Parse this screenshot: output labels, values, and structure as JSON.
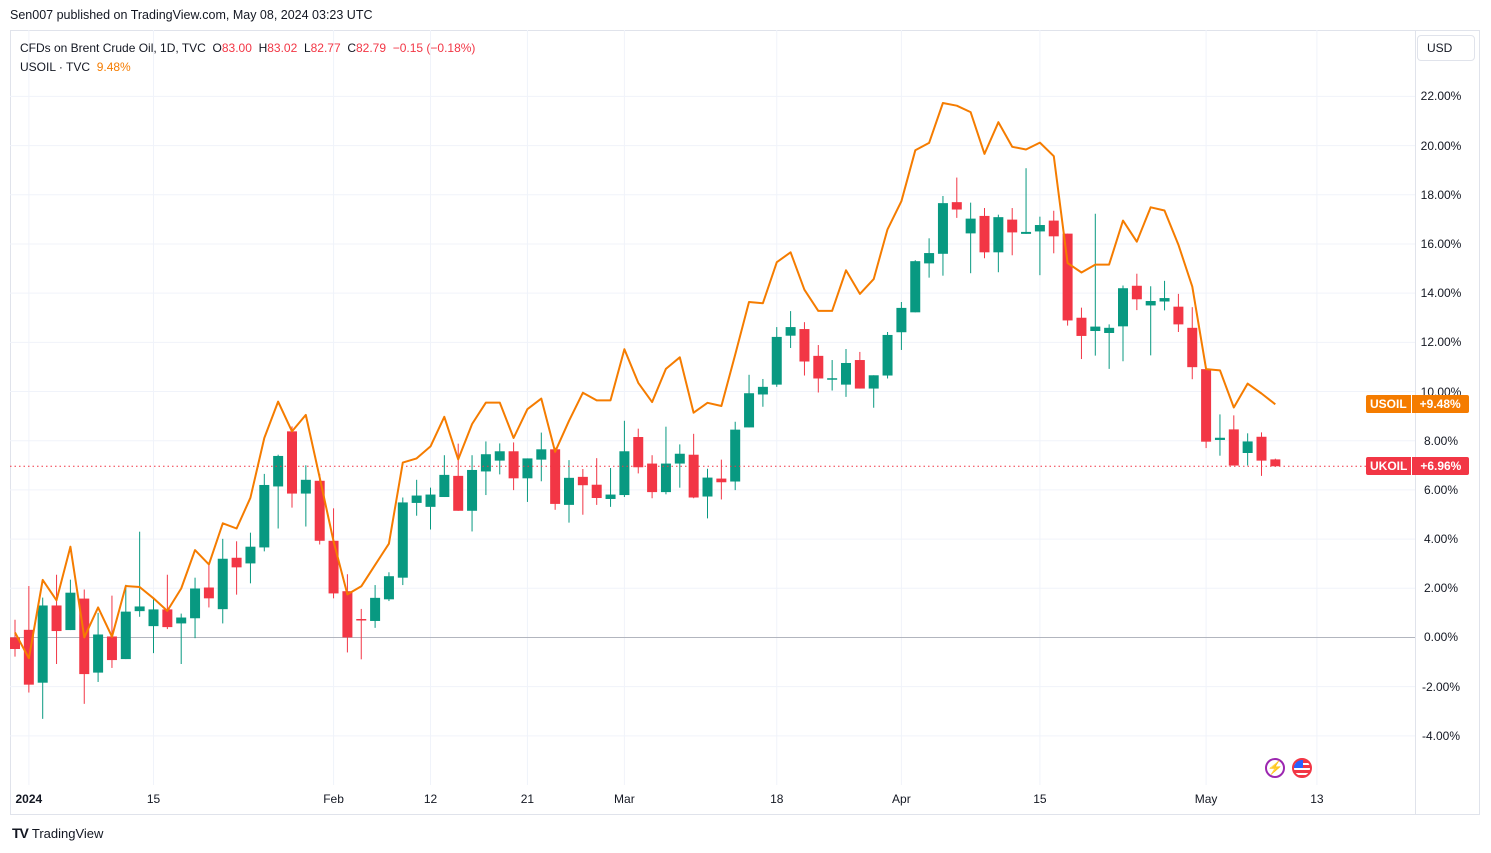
{
  "header": {
    "published": "Sen007 published on TradingView.com, May 08, 2024 03:23 UTC"
  },
  "legend": {
    "symbol_title": "CFDs on Brent Crude Oil, 1D, TVC",
    "o_label": "O",
    "o": "83.00",
    "h_label": "H",
    "h": "83.02",
    "l_label": "L",
    "l": "82.77",
    "c_label": "C",
    "c": "82.79",
    "change": "−0.15 (−0.18%)",
    "compare_symbol": "USOIL · TVC",
    "compare_value": "9.48%"
  },
  "currency_button": "USD",
  "footer": {
    "logo_mark": "TV",
    "logo_text": "TradingView"
  },
  "events": {
    "lightning_icon": "lightning-icon",
    "flag_icon": "us-flag-icon"
  },
  "colors": {
    "up": "#089981",
    "down": "#f23645",
    "compare_line": "#f57c00",
    "zero_line": "#b2b5be",
    "grid": "#f0f3fa"
  },
  "chart_data": {
    "type": "candlestick",
    "title": "CFDs on Brent Crude Oil, 1D, TVC",
    "ylabel": "% change",
    "ylim": [
      -6.0,
      24.7
    ],
    "grid": true,
    "yticks": [
      {
        "value": 22,
        "label": "22.00%"
      },
      {
        "value": 20,
        "label": "20.00%"
      },
      {
        "value": 18,
        "label": "18.00%"
      },
      {
        "value": 16,
        "label": "16.00%"
      },
      {
        "value": 14,
        "label": "14.00%"
      },
      {
        "value": 12,
        "label": "12.00%"
      },
      {
        "value": 10,
        "label": "10.00%"
      },
      {
        "value": 8,
        "label": "8.00%"
      },
      {
        "value": 6,
        "label": "6.00%"
      },
      {
        "value": 4,
        "label": "4.00%"
      },
      {
        "value": 2,
        "label": "2.00%"
      },
      {
        "value": 0,
        "label": "0.00%"
      },
      {
        "value": -2,
        "label": "-2.00%"
      },
      {
        "value": -4,
        "label": "-4.00%"
      }
    ],
    "xticks": [
      {
        "index": 1,
        "label": "2024",
        "bold": true
      },
      {
        "index": 10,
        "label": "15"
      },
      {
        "index": 23,
        "label": "Feb"
      },
      {
        "index": 30,
        "label": "12"
      },
      {
        "index": 37,
        "label": "21"
      },
      {
        "index": 44,
        "label": "Mar"
      },
      {
        "index": 55,
        "label": "18"
      },
      {
        "index": 64,
        "label": "Apr"
      },
      {
        "index": 74,
        "label": "15"
      },
      {
        "index": 86,
        "label": "May"
      },
      {
        "index": 94,
        "label": "13"
      }
    ],
    "series": [
      {
        "name": "UKOIL",
        "kind": "candles",
        "ohlc_percent": [
          [
            0,
            0.72,
            -0.78,
            -0.47
          ],
          [
            0.31,
            2.09,
            -2.24,
            -1.92
          ],
          [
            -1.84,
            1.62,
            -3.31,
            1.3
          ],
          [
            1.3,
            2.55,
            -1.08,
            0.26
          ],
          [
            0.3,
            2.35,
            0.3,
            1.82
          ],
          [
            1.58,
            1.95,
            -2.7,
            -1.49
          ],
          [
            -1.43,
            1.0,
            -1.81,
            0.12
          ],
          [
            0.04,
            1.7,
            -1.24,
            -0.92
          ],
          [
            -0.88,
            2.14,
            -0.88,
            1.05
          ],
          [
            1.07,
            4.3,
            0.84,
            1.26
          ],
          [
            0.46,
            1.57,
            -0.64,
            1.14
          ],
          [
            1.14,
            2.55,
            0.34,
            0.42
          ],
          [
            0.57,
            0.97,
            -1.08,
            0.81
          ],
          [
            0.78,
            2.43,
            -0.03,
            1.99
          ],
          [
            2.03,
            3.03,
            1.22,
            1.59
          ],
          [
            1.15,
            4.01,
            0.57,
            3.2
          ],
          [
            3.24,
            3.91,
            1.74,
            2.85
          ],
          [
            3.01,
            4.26,
            2.2,
            3.69
          ],
          [
            3.66,
            6.65,
            3.5,
            6.2
          ],
          [
            6.14,
            7.43,
            4.43,
            7.38
          ],
          [
            8.38,
            8.58,
            5.28,
            5.85
          ],
          [
            5.85,
            7.0,
            4.51,
            6.41
          ],
          [
            6.37,
            6.65,
            3.78,
            3.93
          ],
          [
            3.93,
            5.25,
            1.59,
            1.79
          ],
          [
            1.88,
            2.57,
            -0.61,
            0
          ],
          [
            0.75,
            1.16,
            -0.89,
            0.74
          ],
          [
            0.67,
            2.13,
            0.39,
            1.61
          ],
          [
            1.55,
            2.65,
            1.48,
            2.49
          ],
          [
            2.43,
            5.69,
            2.13,
            5.49
          ],
          [
            5.47,
            6.41,
            4.95,
            5.77
          ],
          [
            5.31,
            6.09,
            4.39,
            5.81
          ],
          [
            5.71,
            7.41,
            5.71,
            6.61
          ],
          [
            6.57,
            7.88,
            5.15,
            5.15
          ],
          [
            5.15,
            7.41,
            4.31,
            6.81
          ],
          [
            6.75,
            7.97,
            5.79,
            7.45
          ],
          [
            7.19,
            7.89,
            6.63,
            7.57
          ],
          [
            7.57,
            7.93,
            5.99,
            6.47
          ],
          [
            6.47,
            7.28,
            5.51,
            7.28
          ],
          [
            7.23,
            8.33,
            6.35,
            7.65
          ],
          [
            7.65,
            7.72,
            5.19,
            5.43
          ],
          [
            5.39,
            7.21,
            4.67,
            6.49
          ],
          [
            6.53,
            6.85,
            4.99,
            6.19
          ],
          [
            6.21,
            7.29,
            5.39,
            5.67
          ],
          [
            5.63,
            6.89,
            5.31,
            5.81
          ],
          [
            5.79,
            8.81,
            5.71,
            7.57
          ],
          [
            8.15,
            8.49,
            6.67,
            6.92
          ],
          [
            7.07,
            7.41,
            5.66,
            5.91
          ],
          [
            5.91,
            8.57,
            5.82,
            7.07
          ],
          [
            7.07,
            7.85,
            6.09,
            7.47
          ],
          [
            7.43,
            8.28,
            5.66,
            5.69
          ],
          [
            5.73,
            6.86,
            4.84,
            6.5
          ],
          [
            6.46,
            7.23,
            5.61,
            6.31
          ],
          [
            6.34,
            8.77,
            5.99,
            8.45
          ],
          [
            8.54,
            10.68,
            8.54,
            9.93
          ],
          [
            9.88,
            10.51,
            9.38,
            10.19
          ],
          [
            10.28,
            12.62,
            10.19,
            12.22
          ],
          [
            12.27,
            13.27,
            11.77,
            12.62
          ],
          [
            12.54,
            12.82,
            10.65,
            11.22
          ],
          [
            11.45,
            11.89,
            9.96,
            10.53
          ],
          [
            10.54,
            11.28,
            10.04,
            10.54
          ],
          [
            10.28,
            11.73,
            9.78,
            11.16
          ],
          [
            11.28,
            11.61,
            10.12,
            10.12
          ],
          [
            10.12,
            10.66,
            9.34,
            10.66
          ],
          [
            10.65,
            12.42,
            10.53,
            12.3
          ],
          [
            12.41,
            13.64,
            11.69,
            13.4
          ],
          [
            13.22,
            15.34,
            13.22,
            15.3
          ],
          [
            15.21,
            16.23,
            14.63,
            15.63
          ],
          [
            15.6,
            17.95,
            14.71,
            17.66
          ],
          [
            17.7,
            18.7,
            17.06,
            17.4
          ],
          [
            16.43,
            17.68,
            14.81,
            17.03
          ],
          [
            17.14,
            17.46,
            15.42,
            15.66
          ],
          [
            15.66,
            17.19,
            14.85,
            17.09
          ],
          [
            16.99,
            17.46,
            15.54,
            16.47
          ],
          [
            16.41,
            19.08,
            16.41,
            16.49
          ],
          [
            16.51,
            17.11,
            14.73,
            16.77
          ],
          [
            16.95,
            17.35,
            15.62,
            16.31
          ],
          [
            16.42,
            16.42,
            12.68,
            12.89
          ],
          [
            13.0,
            13.41,
            11.32,
            12.26
          ],
          [
            12.46,
            17.23,
            11.46,
            12.64
          ],
          [
            12.38,
            12.73,
            10.92,
            12.59
          ],
          [
            12.65,
            14.31,
            11.23,
            14.2
          ],
          [
            14.3,
            14.79,
            13.31,
            13.75
          ],
          [
            13.5,
            14.28,
            11.47,
            13.68
          ],
          [
            13.66,
            14.5,
            13.3,
            13.8
          ],
          [
            13.45,
            13.97,
            12.42,
            12.73
          ],
          [
            12.59,
            13.43,
            10.5,
            10.99
          ],
          [
            10.91,
            10.91,
            7.7,
            7.96
          ],
          [
            8.03,
            9.07,
            7.39,
            8.12
          ],
          [
            8.46,
            9.03,
            6.99,
            6.99
          ],
          [
            7.5,
            8.3,
            6.99,
            7.97
          ],
          [
            8.16,
            8.34,
            6.57,
            7.19
          ],
          [
            7.24,
            7.27,
            6.94,
            6.96
          ]
        ],
        "last_value": 6.96
      },
      {
        "name": "USOIL",
        "kind": "line",
        "values_percent": [
          0.2,
          -0.85,
          2.34,
          1.51,
          3.69,
          0.0,
          1.22,
          0.03,
          2.09,
          2.05,
          1.59,
          1.08,
          1.99,
          3.55,
          2.97,
          4.64,
          4.43,
          5.68,
          8.11,
          9.59,
          8.38,
          9.05,
          6.5,
          3.9,
          1.75,
          2.08,
          2.95,
          3.81,
          7.11,
          7.28,
          7.77,
          8.97,
          7.24,
          8.68,
          9.55,
          9.55,
          8.11,
          9.28,
          9.71,
          7.55,
          8.81,
          9.95,
          9.64,
          9.64,
          11.72,
          10.35,
          9.57,
          10.92,
          11.39,
          9.14,
          9.54,
          9.41,
          11.5,
          13.64,
          13.59,
          15.26,
          15.66,
          14.14,
          13.28,
          13.28,
          14.93,
          13.97,
          14.57,
          16.59,
          17.74,
          19.81,
          20.11,
          21.73,
          21.62,
          21.36,
          19.66,
          20.95,
          19.95,
          19.84,
          20.12,
          19.57,
          15.22,
          14.84,
          15.16,
          15.16,
          16.95,
          16.09,
          17.49,
          17.36,
          15.97,
          14.26,
          10.91,
          10.86,
          9.35,
          10.32,
          9.92,
          9.48
        ],
        "last_value": 9.48
      }
    ],
    "price_badges": [
      {
        "label": "USOIL",
        "value": "+9.48%",
        "level": 9.48,
        "color": "#f57c00"
      },
      {
        "label": "UKOIL",
        "value": "+6.96%",
        "level": 6.96,
        "color": "#f23645"
      }
    ]
  }
}
